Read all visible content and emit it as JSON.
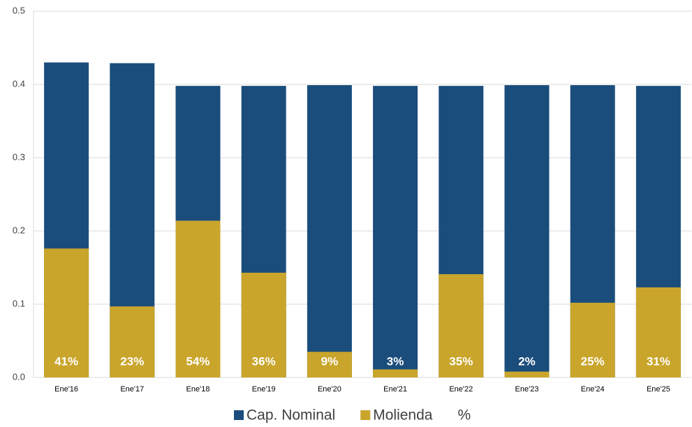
{
  "chart_data": {
    "type": "bar",
    "bar_mode": "overlay",
    "categories": [
      "Ene'16",
      "Ene'17",
      "Ene'18",
      "Ene'19",
      "Ene'20",
      "Ene'21",
      "Ene'22",
      "Ene'23",
      "Ene'24",
      "Ene'25"
    ],
    "series": [
      {
        "name": "Cap. Nominal",
        "color": "#1a4d7c",
        "values": [
          0.43,
          0.429,
          0.398,
          0.398,
          0.399,
          0.398,
          0.398,
          0.399,
          0.399,
          0.398
        ]
      },
      {
        "name": "Molienda",
        "color": "#c9a52b",
        "values": [
          0.176,
          0.097,
          0.214,
          0.143,
          0.035,
          0.011,
          0.141,
          0.008,
          0.102,
          0.123
        ]
      },
      {
        "name": "%",
        "values": [
          41,
          23,
          54,
          36,
          9,
          3,
          35,
          2,
          25,
          31
        ],
        "value_labels": [
          "41%",
          "23%",
          "54%",
          "36%",
          "9%",
          "3%",
          "35%",
          "2%",
          "25%",
          "31%"
        ]
      }
    ],
    "ylim": [
      0,
      0.5
    ],
    "yticks": [
      {
        "value": 0,
        "label": "0.0"
      },
      0.1,
      0.2,
      0.3,
      0.4,
      0.5
    ],
    "grid": true,
    "legend": "bottom"
  }
}
